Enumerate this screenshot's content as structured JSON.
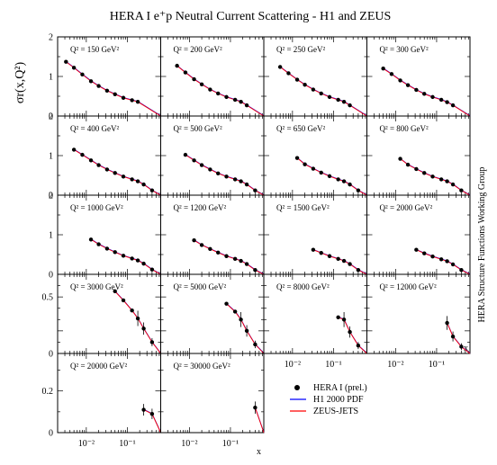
{
  "figure": {
    "title": "HERA I e⁺p Neutral Current Scattering - H1 and ZEUS",
    "ylabel": "σr(x,Q²)",
    "xlabel": "x",
    "side_label": "HERA Structure Functions Working Group",
    "legend": [
      {
        "label": "HERA I (prel.)",
        "marker": "dot"
      },
      {
        "label": "H1 2000 PDF",
        "color": "#0000ff"
      },
      {
        "label": "ZEUS-JETS",
        "color": "#ff0000"
      }
    ],
    "x_tick_labels": [
      "10⁻²",
      "10⁻¹"
    ],
    "y_tick_labels_rows_1_3": [
      "0",
      "1",
      "2"
    ],
    "y_tick_labels_rows_4_5": [
      "0",
      "0.2",
      "0.5"
    ]
  },
  "chart_data": [
    {
      "type": "scatter",
      "title": "Q² = 150 GeV²",
      "xscale": "log",
      "xlim": [
        0.002,
        0.65
      ],
      "ylim": [
        0,
        2
      ],
      "series": [
        {
          "name": "HERA I (prel.)",
          "x": [
            0.0032,
            0.005,
            0.008,
            0.013,
            0.02,
            0.032,
            0.05,
            0.08,
            0.13,
            0.18
          ],
          "y": [
            1.37,
            1.22,
            1.05,
            0.88,
            0.76,
            0.64,
            0.55,
            0.46,
            0.4,
            0.36
          ]
        }
      ]
    },
    {
      "type": "scatter",
      "title": "Q² = 200 GeV²",
      "xscale": "log",
      "xlim": [
        0.002,
        0.65
      ],
      "ylim": [
        0,
        2
      ],
      "series": [
        {
          "name": "HERA I (prel.)",
          "x": [
            0.005,
            0.008,
            0.013,
            0.02,
            0.032,
            0.05,
            0.08,
            0.13,
            0.18,
            0.25
          ],
          "y": [
            1.27,
            1.1,
            0.93,
            0.8,
            0.67,
            0.57,
            0.48,
            0.41,
            0.36,
            0.27
          ]
        }
      ]
    },
    {
      "type": "scatter",
      "title": "Q² = 250 GeV²",
      "xscale": "log",
      "xlim": [
        0.002,
        0.65
      ],
      "ylim": [
        0,
        2
      ],
      "series": [
        {
          "name": "HERA I (prel.)",
          "x": [
            0.005,
            0.008,
            0.013,
            0.02,
            0.032,
            0.05,
            0.08,
            0.13,
            0.18,
            0.25
          ],
          "y": [
            1.24,
            1.08,
            0.92,
            0.79,
            0.67,
            0.57,
            0.48,
            0.41,
            0.36,
            0.27
          ]
        }
      ]
    },
    {
      "type": "scatter",
      "title": "Q² = 300 GeV²",
      "xscale": "log",
      "xlim": [
        0.002,
        0.65
      ],
      "ylim": [
        0,
        2
      ],
      "series": [
        {
          "name": "HERA I (prel.)",
          "x": [
            0.005,
            0.008,
            0.013,
            0.02,
            0.032,
            0.05,
            0.08,
            0.13,
            0.18,
            0.25
          ],
          "y": [
            1.2,
            1.06,
            0.9,
            0.78,
            0.66,
            0.56,
            0.48,
            0.41,
            0.35,
            0.27
          ]
        }
      ]
    },
    {
      "type": "scatter",
      "title": "Q² = 400 GeV²",
      "xscale": "log",
      "xlim": [
        0.002,
        0.65
      ],
      "ylim": [
        0,
        2
      ],
      "series": [
        {
          "name": "HERA I (prel.)",
          "x": [
            0.005,
            0.008,
            0.013,
            0.02,
            0.032,
            0.05,
            0.08,
            0.13,
            0.18,
            0.25,
            0.4
          ],
          "y": [
            1.15,
            1.02,
            0.88,
            0.76,
            0.65,
            0.56,
            0.47,
            0.4,
            0.35,
            0.27,
            0.12
          ]
        }
      ]
    },
    {
      "type": "scatter",
      "title": "Q² = 500 GeV²",
      "xscale": "log",
      "xlim": [
        0.002,
        0.65
      ],
      "ylim": [
        0,
        2
      ],
      "series": [
        {
          "name": "HERA I (prel.)",
          "x": [
            0.008,
            0.013,
            0.02,
            0.032,
            0.05,
            0.08,
            0.13,
            0.18,
            0.25,
            0.4
          ],
          "y": [
            1.02,
            0.88,
            0.76,
            0.65,
            0.55,
            0.47,
            0.4,
            0.35,
            0.27,
            0.12
          ]
        }
      ]
    },
    {
      "type": "scatter",
      "title": "Q² = 650 GeV²",
      "xscale": "log",
      "xlim": [
        0.002,
        0.65
      ],
      "ylim": [
        0,
        2
      ],
      "series": [
        {
          "name": "HERA I (prel.)",
          "x": [
            0.013,
            0.02,
            0.032,
            0.05,
            0.08,
            0.13,
            0.18,
            0.25,
            0.4
          ],
          "y": [
            0.94,
            0.78,
            0.67,
            0.57,
            0.48,
            0.4,
            0.35,
            0.27,
            0.12
          ]
        }
      ]
    },
    {
      "type": "scatter",
      "title": "Q² = 800 GeV²",
      "xscale": "log",
      "xlim": [
        0.002,
        0.65
      ],
      "ylim": [
        0,
        2
      ],
      "series": [
        {
          "name": "HERA I (prel.)",
          "x": [
            0.013,
            0.02,
            0.032,
            0.05,
            0.08,
            0.13,
            0.18,
            0.25,
            0.4
          ],
          "y": [
            0.92,
            0.77,
            0.66,
            0.56,
            0.47,
            0.4,
            0.35,
            0.27,
            0.12
          ]
        }
      ]
    },
    {
      "type": "scatter",
      "title": "Q² = 1000 GeV²",
      "xscale": "log",
      "xlim": [
        0.002,
        0.65
      ],
      "ylim": [
        0,
        2
      ],
      "series": [
        {
          "name": "HERA I (prel.)",
          "x": [
            0.013,
            0.02,
            0.032,
            0.05,
            0.08,
            0.13,
            0.18,
            0.25,
            0.4
          ],
          "y": [
            0.88,
            0.76,
            0.65,
            0.56,
            0.47,
            0.4,
            0.35,
            0.27,
            0.12
          ]
        }
      ]
    },
    {
      "type": "scatter",
      "title": "Q² = 1200 GeV²",
      "xscale": "log",
      "xlim": [
        0.002,
        0.65
      ],
      "ylim": [
        0,
        2
      ],
      "series": [
        {
          "name": "HERA I (prel.)",
          "x": [
            0.013,
            0.02,
            0.032,
            0.05,
            0.08,
            0.13,
            0.18,
            0.25,
            0.4
          ],
          "y": [
            0.86,
            0.74,
            0.64,
            0.55,
            0.46,
            0.39,
            0.34,
            0.26,
            0.11
          ]
        }
      ]
    },
    {
      "type": "scatter",
      "title": "Q² = 1500 GeV²",
      "xscale": "log",
      "xlim": [
        0.002,
        0.65
      ],
      "ylim": [
        0,
        2
      ],
      "series": [
        {
          "name": "HERA I (prel.)",
          "x": [
            0.032,
            0.05,
            0.08,
            0.13,
            0.18,
            0.25,
            0.4
          ],
          "y": [
            0.62,
            0.54,
            0.46,
            0.39,
            0.34,
            0.26,
            0.11
          ]
        }
      ]
    },
    {
      "type": "scatter",
      "title": "Q² = 2000 GeV²",
      "xscale": "log",
      "xlim": [
        0.002,
        0.65
      ],
      "ylim": [
        0,
        2
      ],
      "series": [
        {
          "name": "HERA I (prel.)",
          "x": [
            0.032,
            0.05,
            0.08,
            0.13,
            0.18,
            0.25,
            0.4
          ],
          "y": [
            0.62,
            0.53,
            0.45,
            0.38,
            0.33,
            0.25,
            0.11
          ]
        }
      ]
    },
    {
      "type": "scatter",
      "title": "Q² = 3000 GeV²",
      "xscale": "log",
      "xlim": [
        0.002,
        0.65
      ],
      "ylim": [
        0,
        0.7
      ],
      "series": [
        {
          "name": "HERA I (prel.)",
          "x": [
            0.05,
            0.08,
            0.13,
            0.18,
            0.25,
            0.4
          ],
          "y": [
            0.55,
            0.47,
            0.38,
            0.31,
            0.22,
            0.1
          ]
        }
      ]
    },
    {
      "type": "scatter",
      "title": "Q² = 5000 GeV²",
      "xscale": "log",
      "xlim": [
        0.002,
        0.65
      ],
      "ylim": [
        0,
        0.7
      ],
      "series": [
        {
          "name": "HERA I (prel.)",
          "x": [
            0.08,
            0.13,
            0.18,
            0.25,
            0.4
          ],
          "y": [
            0.44,
            0.37,
            0.3,
            0.2,
            0.08
          ]
        }
      ]
    },
    {
      "type": "scatter",
      "title": "Q² = 8000 GeV²",
      "xscale": "log",
      "xlim": [
        0.002,
        0.65
      ],
      "ylim": [
        0,
        0.7
      ],
      "series": [
        {
          "name": "HERA I (prel.)",
          "x": [
            0.13,
            0.18,
            0.25,
            0.4
          ],
          "y": [
            0.32,
            0.3,
            0.19,
            0.07
          ]
        }
      ]
    },
    {
      "type": "scatter",
      "title": "Q² = 12000 GeV²",
      "xscale": "log",
      "xlim": [
        0.002,
        0.65
      ],
      "ylim": [
        0,
        0.7
      ],
      "series": [
        {
          "name": "HERA I (prel.)",
          "x": [
            0.18,
            0.25,
            0.4
          ],
          "y": [
            0.27,
            0.15,
            0.06
          ]
        }
      ]
    },
    {
      "type": "scatter",
      "title": "Q² = 20000 GeV²",
      "xscale": "log",
      "xlim": [
        0.002,
        0.65
      ],
      "ylim": [
        0,
        0.38
      ],
      "series": [
        {
          "name": "HERA I (prel.)",
          "x": [
            0.25,
            0.4
          ],
          "y": [
            0.11,
            0.09
          ]
        }
      ]
    },
    {
      "type": "scatter",
      "title": "Q² = 30000 GeV²",
      "xscale": "log",
      "xlim": [
        0.002,
        0.65
      ],
      "ylim": [
        0,
        0.38
      ],
      "series": [
        {
          "name": "HERA I (prel.)",
          "x": [
            0.4
          ],
          "y": [
            0.12
          ]
        }
      ]
    }
  ]
}
